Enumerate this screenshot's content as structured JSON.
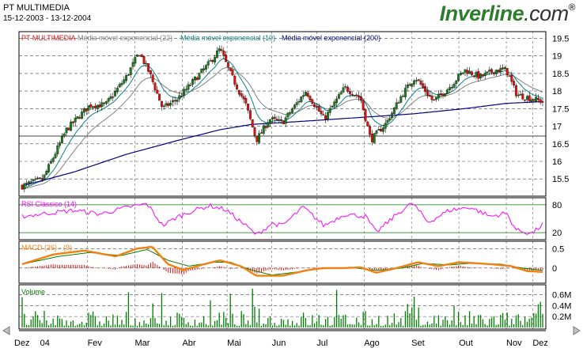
{
  "header": {
    "instrument": "PT MULTIMEDIA",
    "date_range": "15-12-2003 - 13-12-2004",
    "brand_main": "Inverline",
    "brand_domain": ".com",
    "brand_mark": "®"
  },
  "colors": {
    "up_candle": "#1e7b1e",
    "down_candle": "#e01010",
    "ema22": "#808080",
    "ema10": "#108080",
    "ema200": "#000080",
    "rsi": "#ff00ff",
    "macd": "#f08010",
    "macd_signal": "#008000",
    "histogram": "#e01010",
    "volume": "#008000",
    "grid": "#000000"
  },
  "chart_data": [
    {
      "type": "candlestick",
      "panel": "price",
      "title": "PT MULTIMEDIA",
      "legend": [
        "Média móvel exponencial (22)",
        "Média móvel exponencial (10)",
        "Média móvel exponencial (200)"
      ],
      "ylim": [
        15.1,
        19.6
      ],
      "yticks": [
        "19.5",
        "19",
        "18.5",
        "18",
        "17.5",
        "17",
        "16.5",
        "16",
        "15.5"
      ],
      "xticks": [
        "Dez",
        "04",
        "Fev",
        "Mar",
        "Abr",
        "Mai",
        "Jun",
        "Jul",
        "Ago",
        "Set",
        "Out",
        "Nov",
        "Dez"
      ],
      "anchors": [
        {
          "t": 0,
          "v": 15.3
        },
        {
          "t": 0.04,
          "v": 15.5
        },
        {
          "t": 0.085,
          "v": 16.9
        },
        {
          "t": 0.13,
          "v": 17.6
        },
        {
          "t": 0.16,
          "v": 17.6
        },
        {
          "t": 0.2,
          "v": 18.4
        },
        {
          "t": 0.225,
          "v": 19.1
        },
        {
          "t": 0.245,
          "v": 18.5
        },
        {
          "t": 0.27,
          "v": 17.5
        },
        {
          "t": 0.3,
          "v": 17.8
        },
        {
          "t": 0.33,
          "v": 18.3
        },
        {
          "t": 0.36,
          "v": 18.8
        },
        {
          "t": 0.38,
          "v": 19.2
        },
        {
          "t": 0.4,
          "v": 18.5
        },
        {
          "t": 0.43,
          "v": 17.6
        },
        {
          "t": 0.45,
          "v": 16.6
        },
        {
          "t": 0.475,
          "v": 17.2
        },
        {
          "t": 0.5,
          "v": 17.1
        },
        {
          "t": 0.525,
          "v": 17.6
        },
        {
          "t": 0.545,
          "v": 18.0
        },
        {
          "t": 0.58,
          "v": 17.2
        },
        {
          "t": 0.62,
          "v": 18.1
        },
        {
          "t": 0.65,
          "v": 17.8
        },
        {
          "t": 0.67,
          "v": 16.6
        },
        {
          "t": 0.7,
          "v": 17.1
        },
        {
          "t": 0.73,
          "v": 17.9
        },
        {
          "t": 0.755,
          "v": 18.4
        },
        {
          "t": 0.79,
          "v": 17.7
        },
        {
          "t": 0.82,
          "v": 18.1
        },
        {
          "t": 0.85,
          "v": 18.6
        },
        {
          "t": 0.88,
          "v": 18.4
        },
        {
          "t": 0.91,
          "v": 18.6
        },
        {
          "t": 0.93,
          "v": 18.6
        },
        {
          "t": 0.95,
          "v": 17.9
        },
        {
          "t": 1.0,
          "v": 17.7
        }
      ],
      "ema200": [
        {
          "t": 0,
          "v": 15.3
        },
        {
          "t": 0.1,
          "v": 15.7
        },
        {
          "t": 0.2,
          "v": 16.2
        },
        {
          "t": 0.3,
          "v": 16.6
        },
        {
          "t": 0.38,
          "v": 16.9
        },
        {
          "t": 0.44,
          "v": 17.05
        },
        {
          "t": 0.55,
          "v": 17.15
        },
        {
          "t": 0.65,
          "v": 17.25
        },
        {
          "t": 0.75,
          "v": 17.35
        },
        {
          "t": 0.85,
          "v": 17.5
        },
        {
          "t": 0.93,
          "v": 17.65
        },
        {
          "t": 1.0,
          "v": 17.7
        }
      ]
    },
    {
      "type": "line",
      "panel": "rsi",
      "title": "RSI Clássico (14)",
      "ylim": [
        10,
        90
      ],
      "yticks": [
        "80",
        "20"
      ],
      "anchors": [
        {
          "t": 0,
          "v": 55
        },
        {
          "t": 0.05,
          "v": 62
        },
        {
          "t": 0.1,
          "v": 68
        },
        {
          "t": 0.15,
          "v": 60
        },
        {
          "t": 0.2,
          "v": 74
        },
        {
          "t": 0.24,
          "v": 82
        },
        {
          "t": 0.27,
          "v": 35
        },
        {
          "t": 0.3,
          "v": 55
        },
        {
          "t": 0.33,
          "v": 68
        },
        {
          "t": 0.36,
          "v": 78
        },
        {
          "t": 0.39,
          "v": 70
        },
        {
          "t": 0.43,
          "v": 35
        },
        {
          "t": 0.45,
          "v": 15
        },
        {
          "t": 0.48,
          "v": 40
        },
        {
          "t": 0.5,
          "v": 35
        },
        {
          "t": 0.54,
          "v": 75
        },
        {
          "t": 0.58,
          "v": 35
        },
        {
          "t": 0.62,
          "v": 60
        },
        {
          "t": 0.66,
          "v": 55
        },
        {
          "t": 0.68,
          "v": 20
        },
        {
          "t": 0.72,
          "v": 60
        },
        {
          "t": 0.75,
          "v": 84
        },
        {
          "t": 0.78,
          "v": 42
        },
        {
          "t": 0.82,
          "v": 68
        },
        {
          "t": 0.86,
          "v": 75
        },
        {
          "t": 0.9,
          "v": 55
        },
        {
          "t": 0.93,
          "v": 62
        },
        {
          "t": 0.95,
          "v": 25
        },
        {
          "t": 0.98,
          "v": 18
        },
        {
          "t": 1.0,
          "v": 38
        }
      ]
    },
    {
      "type": "line",
      "panel": "macd",
      "title": "MACD (26) - (9)",
      "ylim": [
        -0.35,
        0.65
      ],
      "yticks": [
        "0.5",
        "0"
      ],
      "macd": [
        {
          "t": 0,
          "v": 0.1
        },
        {
          "t": 0.06,
          "v": 0.35
        },
        {
          "t": 0.12,
          "v": 0.45
        },
        {
          "t": 0.18,
          "v": 0.3
        },
        {
          "t": 0.22,
          "v": 0.5
        },
        {
          "t": 0.25,
          "v": 0.55
        },
        {
          "t": 0.28,
          "v": 0.1
        },
        {
          "t": 0.31,
          "v": -0.05
        },
        {
          "t": 0.35,
          "v": 0.1
        },
        {
          "t": 0.38,
          "v": 0.2
        },
        {
          "t": 0.42,
          "v": 0.05
        },
        {
          "t": 0.45,
          "v": -0.2
        },
        {
          "t": 0.5,
          "v": -0.2
        },
        {
          "t": 0.55,
          "v": -0.05
        },
        {
          "t": 0.58,
          "v": 0.0
        },
        {
          "t": 0.62,
          "v": 0.0
        },
        {
          "t": 0.65,
          "v": 0.02
        },
        {
          "t": 0.68,
          "v": -0.12
        },
        {
          "t": 0.72,
          "v": 0.0
        },
        {
          "t": 0.76,
          "v": 0.15
        },
        {
          "t": 0.8,
          "v": 0.05
        },
        {
          "t": 0.84,
          "v": 0.15
        },
        {
          "t": 0.9,
          "v": 0.1
        },
        {
          "t": 0.94,
          "v": 0.05
        },
        {
          "t": 0.97,
          "v": -0.08
        },
        {
          "t": 1.0,
          "v": -0.1
        }
      ],
      "signal": [
        {
          "t": 0,
          "v": 0.1
        },
        {
          "t": 0.07,
          "v": 0.3
        },
        {
          "t": 0.13,
          "v": 0.4
        },
        {
          "t": 0.19,
          "v": 0.32
        },
        {
          "t": 0.24,
          "v": 0.48
        },
        {
          "t": 0.28,
          "v": 0.2
        },
        {
          "t": 0.32,
          "v": 0.05
        },
        {
          "t": 0.37,
          "v": 0.15
        },
        {
          "t": 0.4,
          "v": 0.15
        },
        {
          "t": 0.44,
          "v": -0.05
        },
        {
          "t": 0.48,
          "v": -0.18
        },
        {
          "t": 0.53,
          "v": -0.1
        },
        {
          "t": 0.58,
          "v": 0.0
        },
        {
          "t": 0.64,
          "v": 0.0
        },
        {
          "t": 0.68,
          "v": -0.06
        },
        {
          "t": 0.73,
          "v": 0.0
        },
        {
          "t": 0.77,
          "v": 0.12
        },
        {
          "t": 0.82,
          "v": 0.08
        },
        {
          "t": 0.86,
          "v": 0.12
        },
        {
          "t": 0.92,
          "v": 0.1
        },
        {
          "t": 0.96,
          "v": 0.0
        },
        {
          "t": 1.0,
          "v": -0.06
        }
      ]
    },
    {
      "type": "bar",
      "panel": "volume",
      "title": "Volume",
      "ylim": [
        0,
        0.75
      ],
      "yticks": [
        "0.6M",
        "0.4M",
        "0.2M"
      ]
    }
  ]
}
